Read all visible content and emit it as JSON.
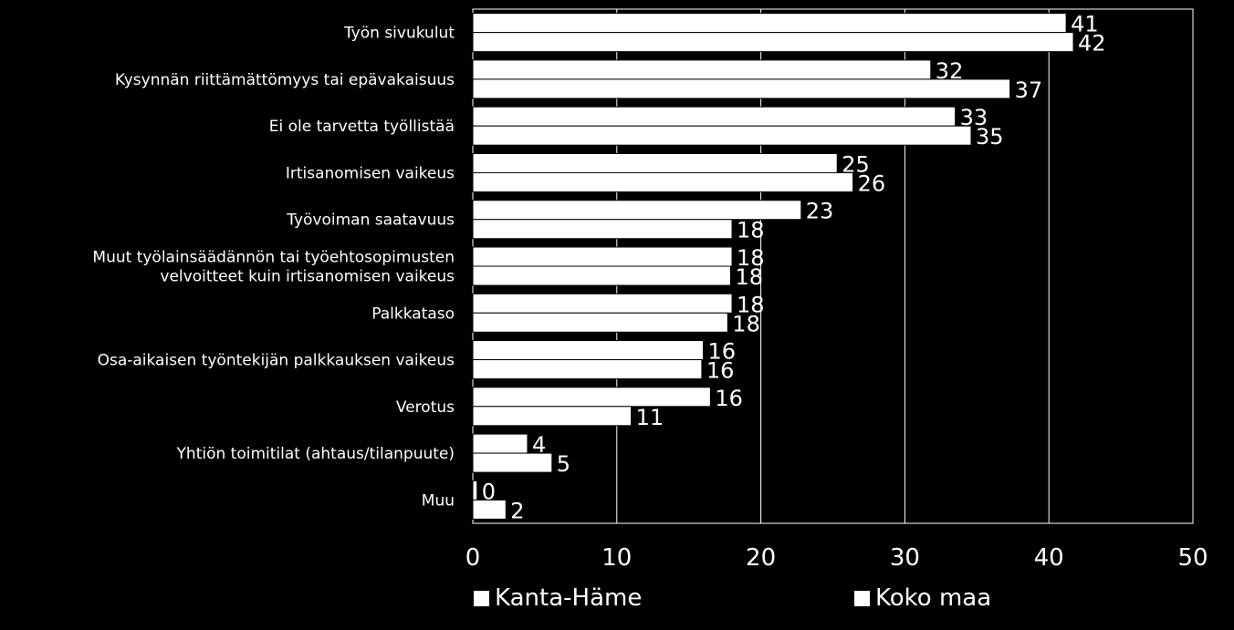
{
  "chart_data": {
    "type": "bar",
    "orientation": "horizontal",
    "categories": [
      "Työn sivukulut",
      "Kysynnän riittämättömyys tai epävakaisuus",
      "Ei ole tarvetta työllistää",
      "Irtisanomisen vaikeus",
      "Työvoiman saatavuus",
      "Muut työlainsäädännön tai työehtosopimusten velvoitteet kuin irtisanomisen vaikeus",
      "Palkkataso",
      "Osa-aikaisen työntekijän palkkauksen vaikeus",
      "Verotus",
      "Yhtiön toimitilat (ahtaus/tilanpuute)",
      "Muu"
    ],
    "category_lines": [
      [
        "Työn sivukulut"
      ],
      [
        "Kysynnän riittämättömyys tai epävakaisuus"
      ],
      [
        "Ei ole tarvetta työllistää"
      ],
      [
        "Irtisanomisen vaikeus"
      ],
      [
        "Työvoiman saatavuus"
      ],
      [
        "Muut työlainsäädännön tai työehtosopimusten",
        "velvoitteet kuin irtisanomisen vaikeus"
      ],
      [
        "Palkkataso"
      ],
      [
        "Osa-aikaisen työntekijän palkkauksen vaikeus"
      ],
      [
        "Verotus"
      ],
      [
        "Yhtiön toimitilat (ahtaus/tilanpuute)"
      ],
      [
        "Muu"
      ]
    ],
    "series": [
      {
        "name": "Kanta-Häme",
        "values": [
          41.2,
          31.8,
          33.5,
          25.3,
          22.8,
          18.0,
          18.0,
          16.0,
          16.5,
          3.8,
          0.3
        ],
        "labels": [
          "41",
          "32",
          "33",
          "25",
          "23",
          "18",
          "18",
          "16",
          "16",
          "4",
          "0"
        ]
      },
      {
        "name": "Koko maa",
        "values": [
          41.7,
          37.3,
          34.6,
          26.4,
          18.0,
          17.9,
          17.7,
          15.9,
          11.0,
          5.5,
          2.3
        ],
        "labels": [
          "42",
          "37",
          "35",
          "26",
          "18",
          "18",
          "18",
          "16",
          "11",
          "5",
          "2"
        ]
      }
    ],
    "xlim": [
      0,
      50
    ],
    "xticks": [
      "0",
      "10",
      "20",
      "30",
      "40",
      "50"
    ],
    "grid": true,
    "legend_position": "bottom",
    "colors": {
      "background": "#000000",
      "bar": "#ffffff",
      "bar_edge": "#000000",
      "grid": "#ffffff",
      "text": "#ffffff"
    }
  }
}
